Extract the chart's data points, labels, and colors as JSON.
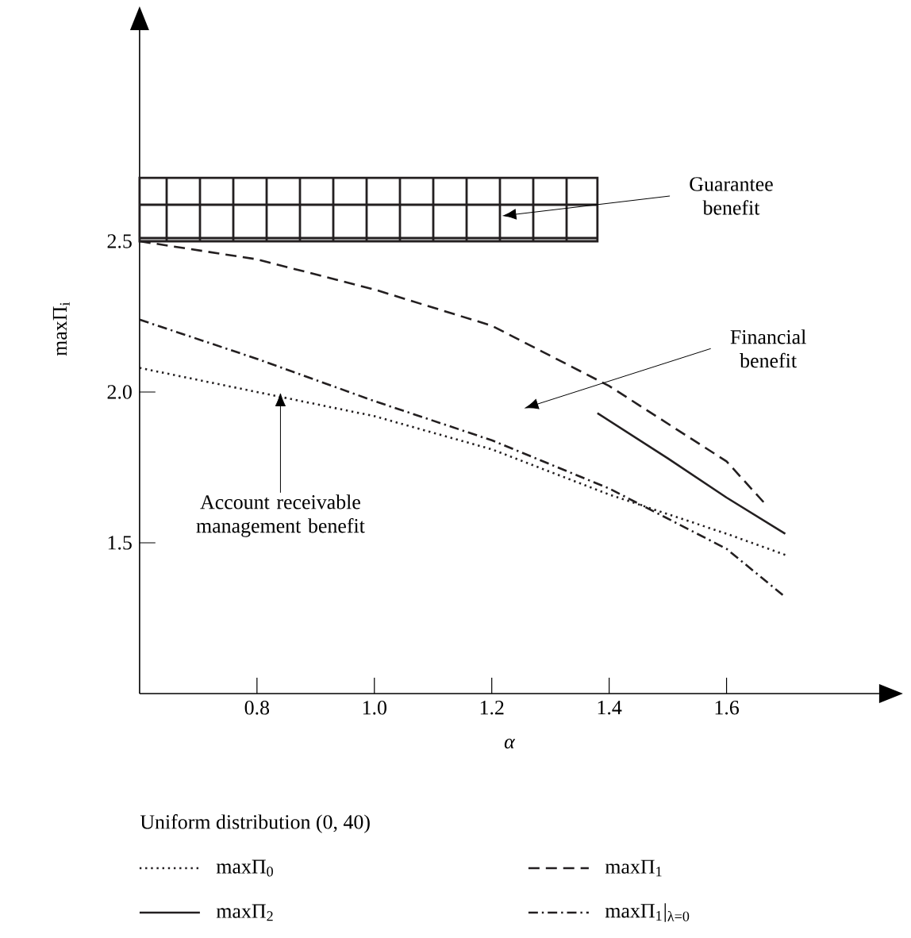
{
  "chart_data": {
    "type": "line",
    "xlabel": "α",
    "ylabel": "maxΠ$_{i}$",
    "legend_title": "Uniform distribution (0, 40)",
    "legend": "bottom",
    "xlim": [
      0.6,
      1.86
    ],
    "ylim": [
      1.0,
      3.2
    ],
    "xticks": [
      0.8,
      {
        "value": 1.0,
        "label": "1.0"
      },
      1.2,
      1.4,
      1.6
    ],
    "yticks": [
      1.5,
      {
        "value": 2.0,
        "label": "2.0"
      },
      2.5
    ],
    "series": [
      {
        "name": "maxΠ$_{0}$",
        "color": "#231f20",
        "line_style": "dotted",
        "x": [
          0.6,
          0.8,
          1.0,
          1.2,
          1.4,
          1.6,
          1.7
        ],
        "values": [
          2.08,
          2.0,
          1.92,
          1.81,
          1.66,
          1.53,
          1.46
        ]
      },
      {
        "name": "maxΠ$_{1}$",
        "color": "#231f20",
        "line_style": "dashed",
        "x": [
          0.6,
          0.8,
          1.0,
          1.2,
          1.4,
          1.6,
          1.67
        ],
        "values": [
          2.5,
          2.44,
          2.34,
          2.22,
          2.02,
          1.77,
          1.62
        ]
      },
      {
        "name": "maxΠ$_{2}$",
        "color": "#231f20",
        "line_style": "solid",
        "x": [
          1.38,
          1.5,
          1.6,
          1.7
        ],
        "values": [
          1.93,
          1.78,
          1.65,
          1.53
        ]
      },
      {
        "name": "maxΠ$_{1}$|$_{λ=0}$",
        "color": "#231f20",
        "line_style": "dashdot",
        "x": [
          0.6,
          0.8,
          1.0,
          1.2,
          1.4,
          1.6,
          1.7
        ],
        "values": [
          2.24,
          2.11,
          1.97,
          1.84,
          1.68,
          1.48,
          1.32
        ]
      }
    ],
    "bands": [
      {
        "axis": "y",
        "from": 2.5,
        "to": 2.71,
        "color": "#231f20"
      }
    ],
    "annotations": [
      "Guarantee benefit",
      "Financial benefit",
      {
        "text": "Account receivable management benefit",
        "x": 0.84,
        "y": 2.0
      }
    ]
  }
}
